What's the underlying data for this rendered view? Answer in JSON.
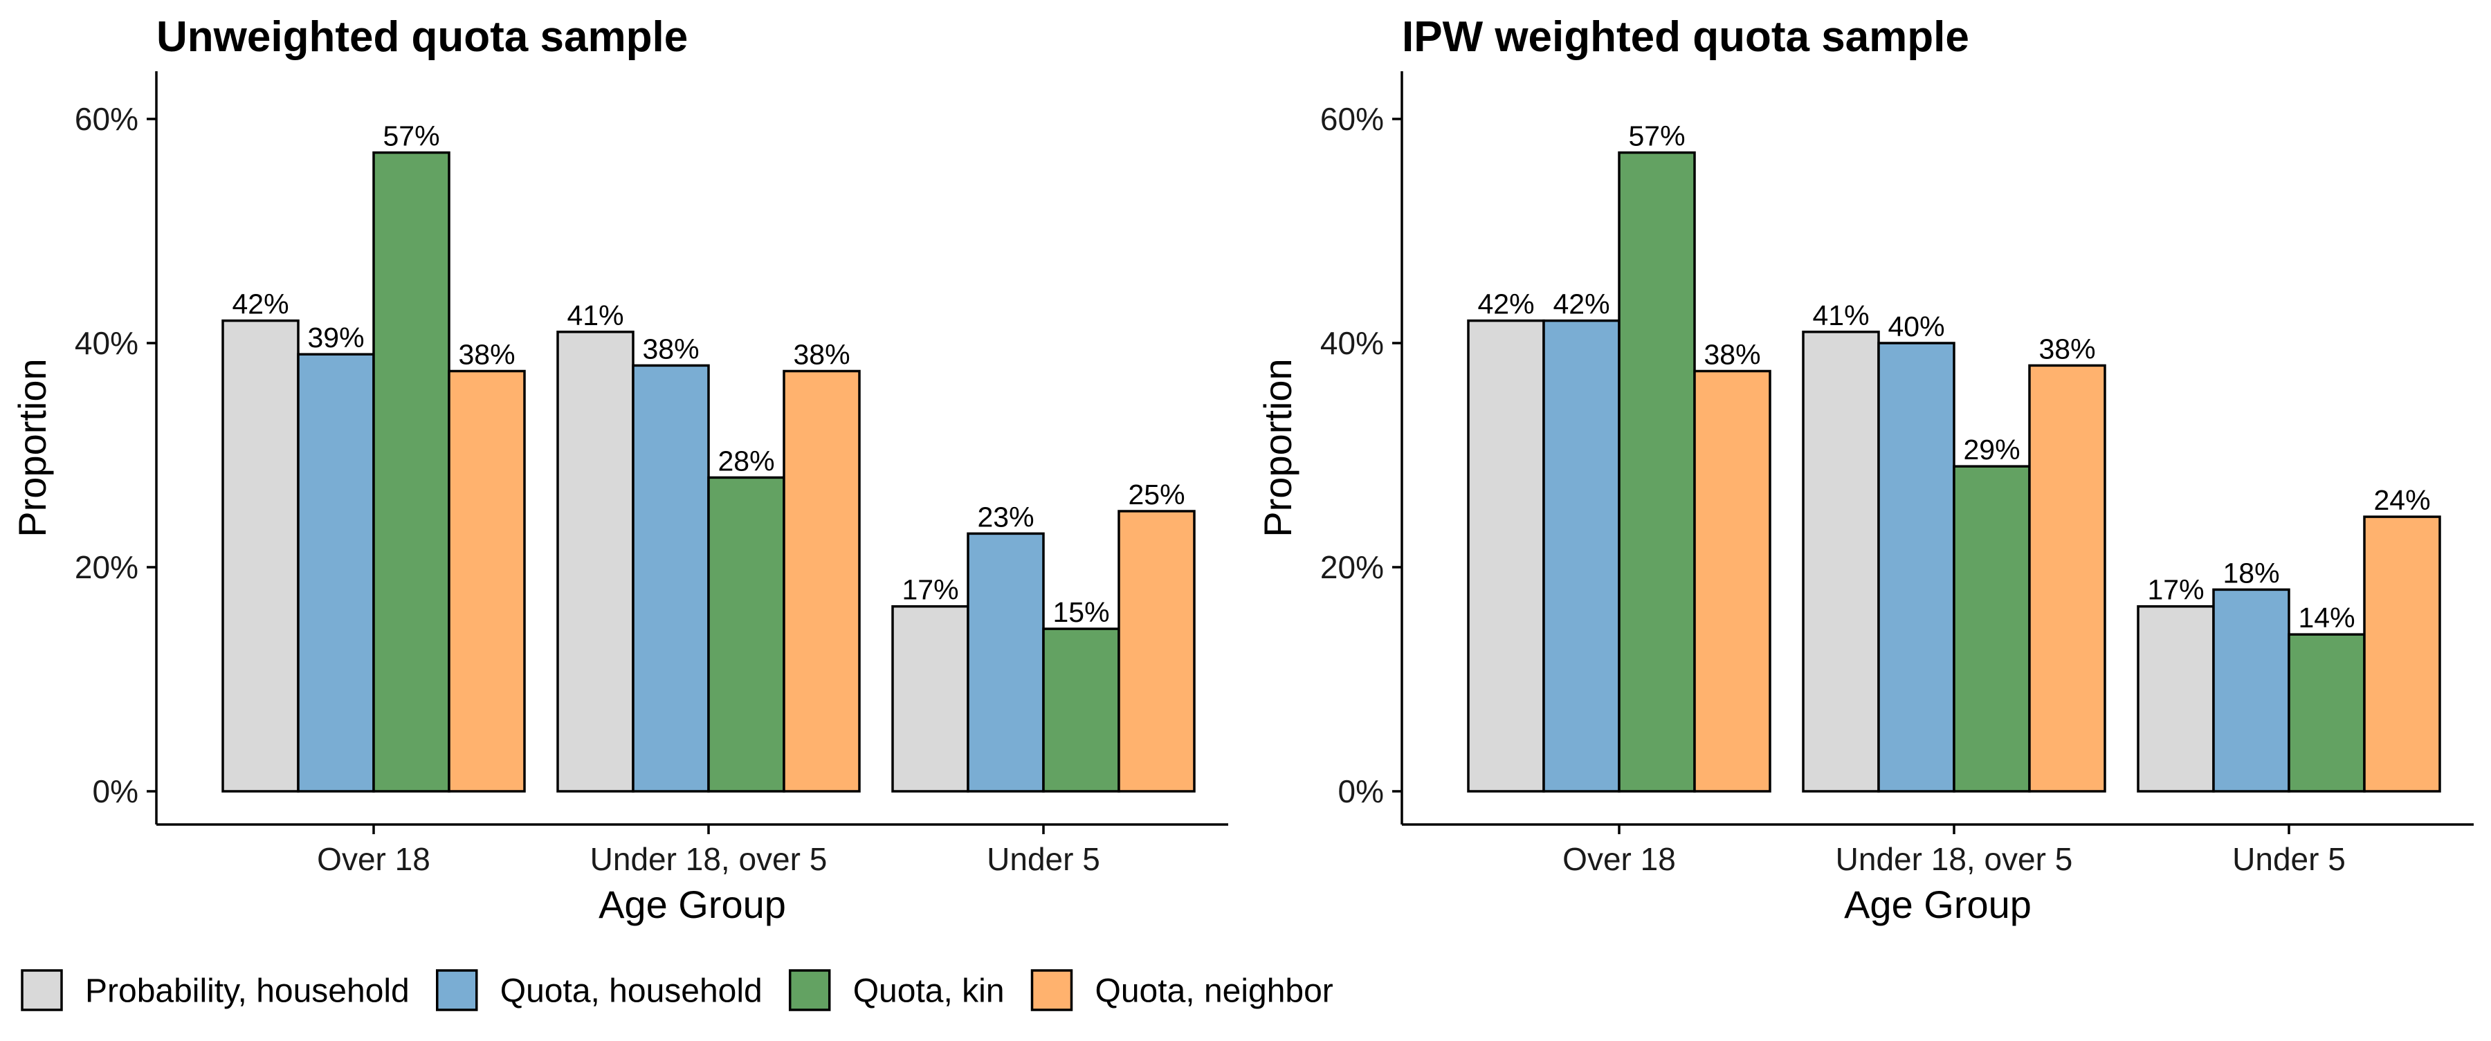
{
  "chart_data": [
    {
      "type": "bar",
      "title": "Unweighted quota sample",
      "xlabel": "Age Group",
      "ylabel": "Proportion",
      "ylim": [
        0,
        0.63
      ],
      "yticks": [
        0,
        0.2,
        0.4,
        0.6
      ],
      "ytick_labels": [
        "0%",
        "20%",
        "40%",
        "60%"
      ],
      "grid": false,
      "categories": [
        "Over 18",
        "Under 18, over 5",
        "Under 5"
      ],
      "series": [
        {
          "name": "Probability, household",
          "values": [
            0.42,
            0.41,
            0.165
          ],
          "labels": [
            "42%",
            "41%",
            "17%"
          ]
        },
        {
          "name": "Quota, household",
          "values": [
            0.39,
            0.38,
            0.23
          ],
          "labels": [
            "39%",
            "38%",
            "23%"
          ]
        },
        {
          "name": "Quota, kin",
          "values": [
            0.57,
            0.28,
            0.145
          ],
          "labels": [
            "57%",
            "28%",
            "15%"
          ]
        },
        {
          "name": "Quota, neighbor",
          "values": [
            0.375,
            0.375,
            0.25
          ],
          "labels": [
            "38%",
            "38%",
            "25%"
          ]
        }
      ]
    },
    {
      "type": "bar",
      "title": "IPW weighted quota sample",
      "xlabel": "Age Group",
      "ylabel": "Proportion",
      "ylim": [
        0,
        0.63
      ],
      "yticks": [
        0,
        0.2,
        0.4,
        0.6
      ],
      "ytick_labels": [
        "0%",
        "20%",
        "40%",
        "60%"
      ],
      "grid": false,
      "categories": [
        "Over 18",
        "Under 18, over 5",
        "Under 5"
      ],
      "series": [
        {
          "name": "Probability, household",
          "values": [
            0.42,
            0.41,
            0.165
          ],
          "labels": [
            "42%",
            "41%",
            "17%"
          ]
        },
        {
          "name": "Quota, household",
          "values": [
            0.42,
            0.4,
            0.18
          ],
          "labels": [
            "42%",
            "40%",
            "18%"
          ]
        },
        {
          "name": "Quota, kin",
          "values": [
            0.57,
            0.29,
            0.14
          ],
          "labels": [
            "57%",
            "29%",
            "14%"
          ]
        },
        {
          "name": "Quota, neighbor",
          "values": [
            0.375,
            0.38,
            0.245
          ],
          "labels": [
            "38%",
            "38%",
            "24%"
          ]
        }
      ]
    }
  ],
  "legend": {
    "position": "bottom-left",
    "items": [
      {
        "name": "Probability, household",
        "color": "#d9d9d9"
      },
      {
        "name": "Quota, household",
        "color": "#7aadd3"
      },
      {
        "name": "Quota, kin",
        "color": "#63a262"
      },
      {
        "name": "Quota, neighbor",
        "color": "#ffb26e"
      }
    ]
  }
}
